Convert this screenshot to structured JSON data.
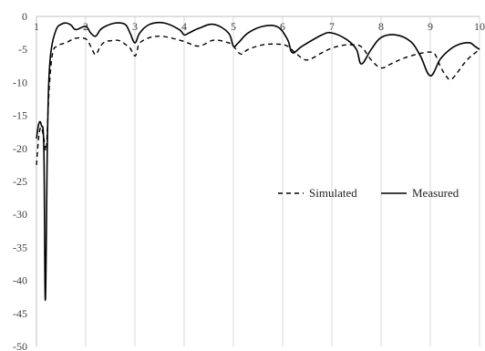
{
  "chart_data": {
    "type": "line",
    "xlim": [
      1,
      10
    ],
    "ylim": [
      -50,
      0
    ],
    "x_ticks": [
      1,
      2,
      3,
      4,
      5,
      6,
      7,
      8,
      9,
      10
    ],
    "x_tick_labels": [
      "1",
      "2",
      "3",
      "4",
      "5",
      "6",
      "7",
      "8",
      "9",
      "10"
    ],
    "y_ticks": [
      0,
      -5,
      -10,
      -15,
      -20,
      -25,
      -30,
      -35,
      -40,
      -45,
      -50
    ],
    "y_tick_labels": [
      "0",
      "-5",
      "-10",
      "-15",
      "-20",
      "-25",
      "-30",
      "-35",
      "-40",
      "-45",
      "-50"
    ],
    "grid": "vertical",
    "legend_position": "middle-right",
    "series": [
      {
        "name": "Simulated",
        "style": "dashed",
        "color": "#000000",
        "x": [
          1.0,
          1.05,
          1.1,
          1.15,
          1.2,
          1.25,
          1.3,
          1.35,
          1.4,
          1.5,
          1.6,
          1.7,
          1.8,
          2.0,
          2.1,
          2.2,
          2.3,
          2.4,
          2.5,
          2.6,
          2.7,
          2.8,
          2.9,
          3.0,
          3.05,
          3.1,
          3.3,
          3.5,
          3.7,
          4.0,
          4.3,
          4.6,
          4.9,
          5.0,
          5.15,
          5.3,
          5.6,
          5.9,
          6.1,
          6.3,
          6.5,
          6.8,
          7.0,
          7.2,
          7.4,
          7.6,
          7.8,
          8.0,
          8.2,
          8.4,
          8.6,
          8.8,
          9.0,
          9.1,
          9.2,
          9.3,
          9.4,
          9.5,
          9.6,
          9.7,
          9.8,
          9.9,
          10.0
        ],
        "values": [
          -22.5,
          -18.0,
          -16.8,
          -18.5,
          -20.0,
          -12.0,
          -7.0,
          -5.0,
          -4.6,
          -4.2,
          -4.0,
          -3.6,
          -3.3,
          -3.4,
          -4.5,
          -5.8,
          -4.5,
          -3.8,
          -3.7,
          -3.6,
          -3.7,
          -4.2,
          -4.8,
          -6.0,
          -5.0,
          -4.0,
          -3.2,
          -3.0,
          -3.2,
          -3.8,
          -4.5,
          -3.6,
          -4.0,
          -4.5,
          -5.7,
          -5.0,
          -4.3,
          -4.2,
          -4.5,
          -5.8,
          -6.6,
          -5.5,
          -4.8,
          -4.4,
          -4.3,
          -4.6,
          -6.6,
          -7.8,
          -7.2,
          -6.5,
          -6.0,
          -5.6,
          -5.4,
          -5.8,
          -7.5,
          -8.8,
          -9.6,
          -9.0,
          -8.0,
          -7.0,
          -6.2,
          -5.6,
          -5.0
        ]
      },
      {
        "name": "Measured",
        "style": "solid",
        "color": "#000000",
        "x": [
          1.0,
          1.05,
          1.1,
          1.15,
          1.18,
          1.22,
          1.25,
          1.3,
          1.4,
          1.5,
          1.6,
          1.7,
          1.8,
          2.0,
          2.1,
          2.2,
          2.3,
          2.4,
          2.6,
          2.8,
          2.9,
          3.0,
          3.1,
          3.3,
          3.6,
          3.9,
          4.0,
          4.1,
          4.3,
          4.6,
          4.9,
          5.0,
          5.1,
          5.3,
          5.6,
          5.9,
          6.1,
          6.2,
          6.4,
          6.8,
          7.0,
          7.3,
          7.5,
          7.6,
          7.8,
          8.0,
          8.3,
          8.6,
          8.8,
          9.0,
          9.2,
          9.4,
          9.6,
          9.8,
          9.9,
          10.0
        ],
        "values": [
          -18.5,
          -16.2,
          -16.5,
          -20.0,
          -43.0,
          -20.0,
          -10.0,
          -5.0,
          -2.0,
          -1.2,
          -1.0,
          -1.3,
          -2.0,
          -1.5,
          -2.5,
          -3.0,
          -2.0,
          -1.5,
          -1.0,
          -1.2,
          -2.5,
          -4.0,
          -2.5,
          -1.2,
          -1.0,
          -2.0,
          -2.8,
          -2.5,
          -1.8,
          -1.2,
          -2.5,
          -4.5,
          -4.0,
          -2.5,
          -1.5,
          -1.6,
          -3.5,
          -5.5,
          -4.5,
          -2.8,
          -2.5,
          -3.5,
          -5.0,
          -7.2,
          -5.0,
          -3.2,
          -2.8,
          -3.8,
          -6.0,
          -9.0,
          -6.5,
          -5.0,
          -4.2,
          -4.0,
          -4.5,
          -5.0
        ]
      }
    ]
  }
}
